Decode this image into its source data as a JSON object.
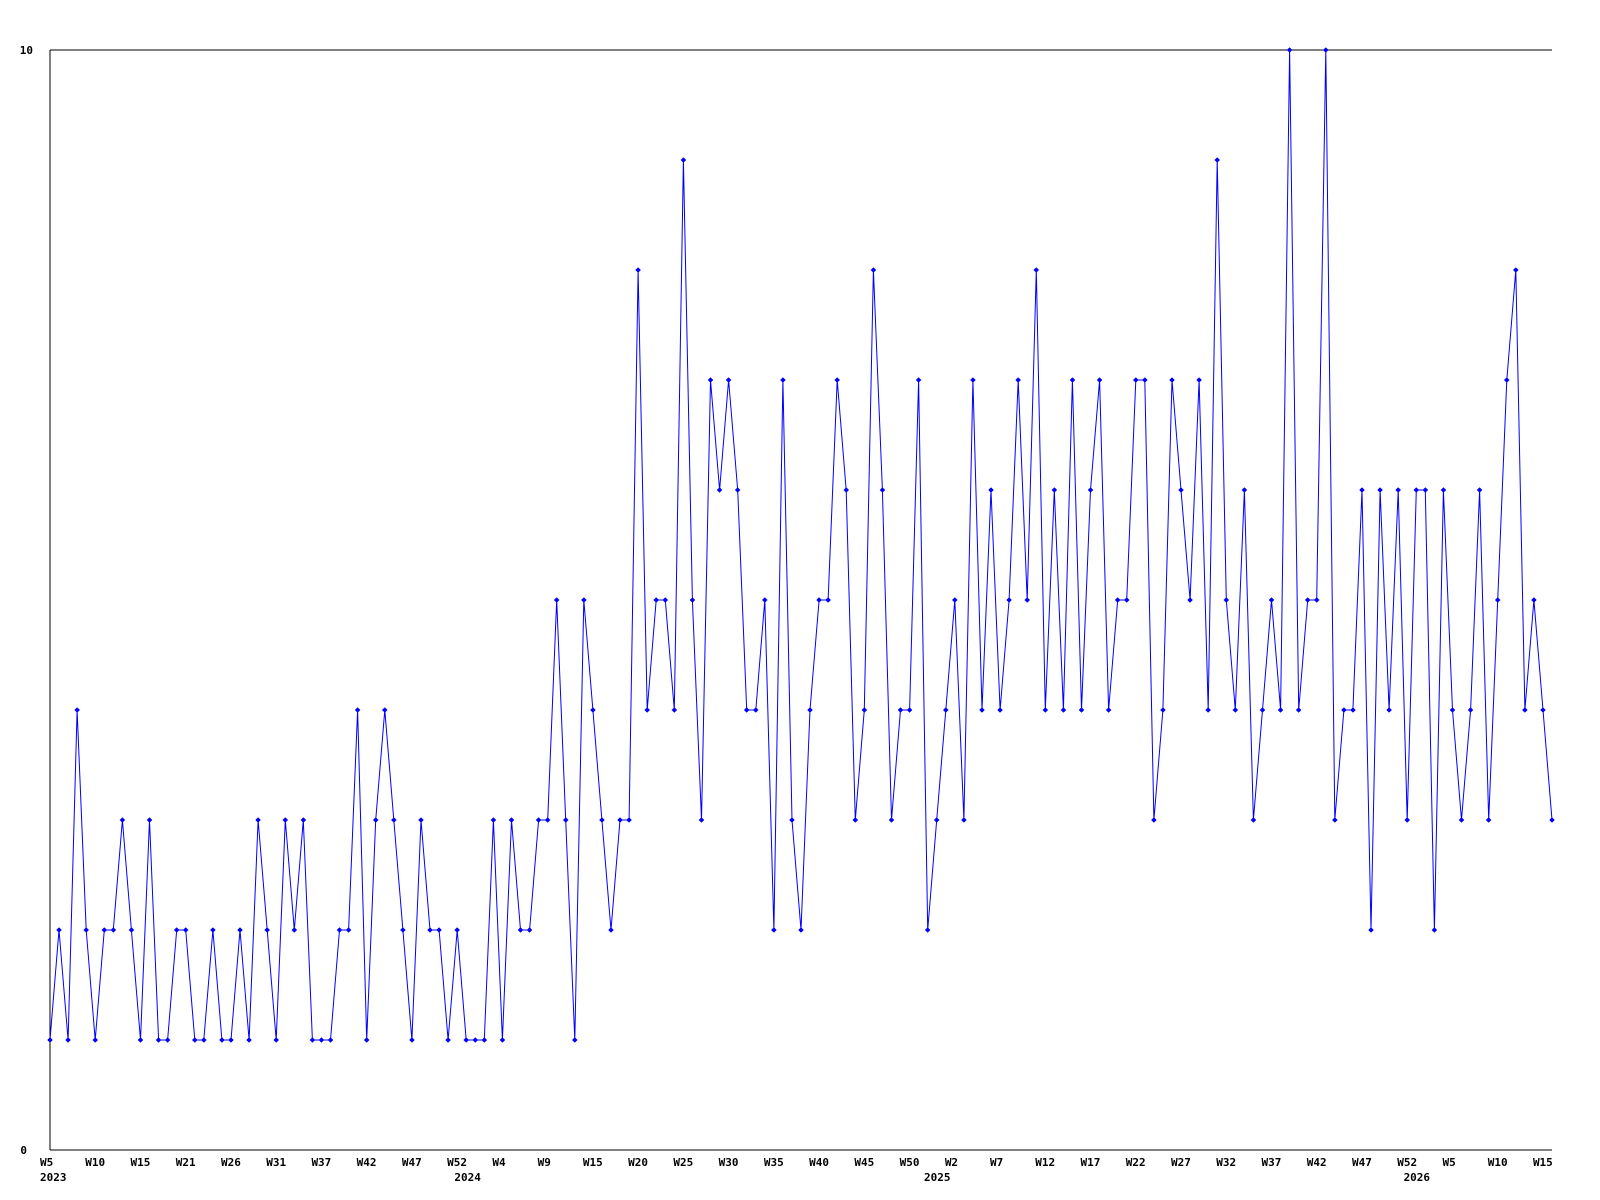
{
  "chart_data": {
    "type": "line",
    "title": "",
    "xlabel": "",
    "ylabel": "",
    "ylim": [
      0,
      10
    ],
    "y_tick_labels": [
      "0",
      "10"
    ],
    "x_tick_labels": [
      "W5",
      "W10",
      "W15",
      "W21",
      "W26",
      "W31",
      "W37",
      "W42",
      "W47",
      "W52",
      "W4",
      "W9",
      "W15",
      "W20",
      "W25",
      "W30",
      "W35",
      "W40",
      "W45",
      "W50",
      "W2",
      "W7",
      "W12",
      "W17",
      "W22",
      "W27",
      "W32",
      "W37",
      "W42",
      "W47",
      "W52",
      "W5",
      "W10",
      "W15"
    ],
    "year_labels": [
      "2023",
      "2024",
      "2025",
      "2026"
    ],
    "grid": false,
    "legend": "none",
    "markers": true,
    "colors": {
      "series": "#0000ff",
      "axis": "#000000",
      "background": "#ffffff"
    },
    "series": [
      {
        "values": [
          1,
          2,
          1,
          4,
          2,
          1,
          2,
          2,
          3,
          2,
          1,
          3,
          1,
          1,
          2,
          2,
          1,
          1,
          2,
          1,
          1,
          2,
          1,
          3,
          2,
          1,
          3,
          2,
          3,
          1,
          1,
          1,
          2,
          2,
          4,
          1,
          3,
          4,
          3,
          2,
          1,
          3,
          2,
          2,
          1,
          2,
          1,
          1,
          1,
          3,
          1,
          3,
          2,
          2,
          3,
          3,
          5,
          3,
          1,
          5,
          4,
          3,
          2,
          3,
          3,
          8,
          4,
          5,
          5,
          4,
          9,
          5,
          3,
          7,
          6,
          7,
          6,
          4,
          4,
          5,
          2,
          7,
          3,
          2,
          4,
          5,
          5,
          7,
          6,
          3,
          4,
          8,
          6,
          3,
          4,
          4,
          7,
          2,
          3,
          4,
          5,
          3,
          7,
          4,
          6,
          4,
          5,
          7,
          5,
          8,
          4,
          6,
          4,
          7,
          4,
          6,
          7,
          4,
          5,
          5,
          7,
          7,
          3,
          4,
          7,
          6,
          5,
          7,
          4,
          9,
          5,
          4,
          6,
          3,
          4,
          5,
          4,
          10,
          4,
          5,
          5,
          10,
          3,
          4,
          4,
          6,
          2,
          6,
          4,
          6,
          3,
          6,
          6,
          2,
          6,
          4,
          3,
          4,
          6,
          3,
          5,
          7,
          8,
          4,
          5,
          4,
          3
        ]
      }
    ]
  }
}
